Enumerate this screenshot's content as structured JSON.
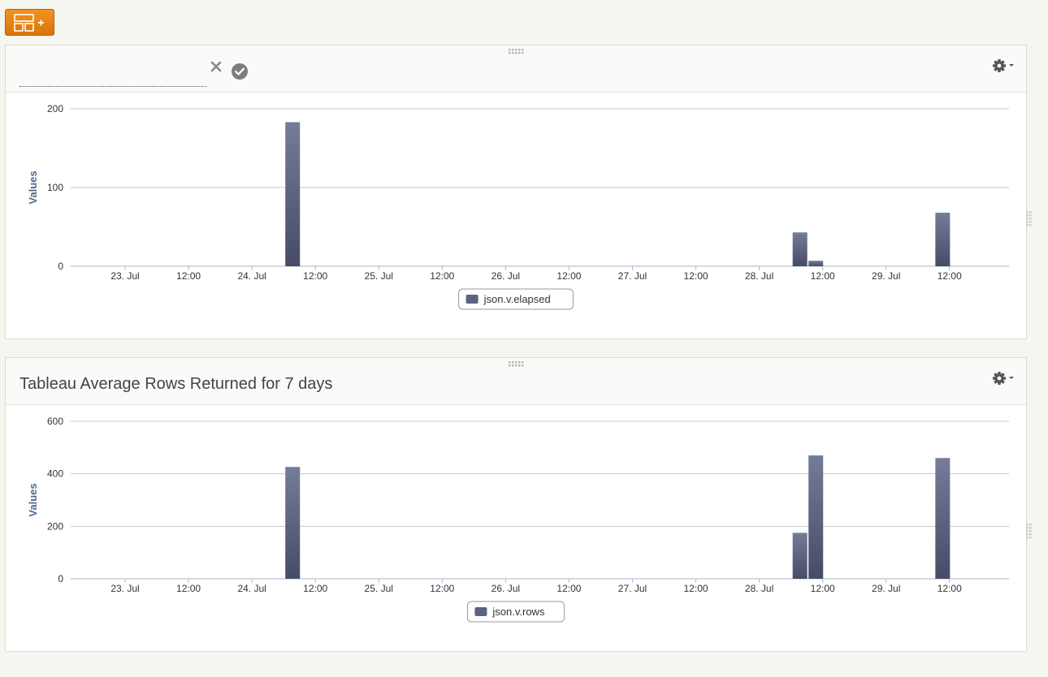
{
  "toolbar": {
    "add_panel_icon": "add-panel-icon"
  },
  "panels": [
    {
      "title_input": {
        "value": "",
        "placeholder": ""
      },
      "icons": {
        "cancel": "close-icon",
        "confirm": "check-circle-icon",
        "settings": "gear-icon",
        "drag": "drag-handle-icon"
      }
    },
    {
      "title": "Tableau Average Rows Returned for 7 days",
      "icons": {
        "settings": "gear-icon",
        "drag": "drag-handle-icon"
      }
    }
  ],
  "chart_data": [
    {
      "type": "bar",
      "ylabel": "Values",
      "ylim": [
        0,
        200
      ],
      "yticks": [
        0,
        100,
        200
      ],
      "xticks": [
        "23. Jul",
        "12:00",
        "24. Jul",
        "12:00",
        "25. Jul",
        "12:00",
        "26. Jul",
        "12:00",
        "27. Jul",
        "12:00",
        "28. Jul",
        "12:00",
        "29. Jul",
        "12:00"
      ],
      "xrange": [
        "2014-07-22 18:00",
        "2014-07-29 22:00"
      ],
      "legend": "bottom-center",
      "grid": true,
      "series": [
        {
          "name": "json.v.elapsed",
          "color": "#5c6380",
          "points": [
            {
              "x": "2014-07-24 12:00",
              "y": 183
            },
            {
              "x": "2014-07-28 12:00",
              "y": 43
            },
            {
              "x": "2014-07-28 15:00",
              "y": 7
            },
            {
              "x": "2014-07-29 15:00",
              "y": 68
            }
          ]
        }
      ]
    },
    {
      "type": "bar",
      "ylabel": "Values",
      "ylim": [
        0,
        600
      ],
      "yticks": [
        0,
        200,
        400,
        600
      ],
      "xticks": [
        "23. Jul",
        "12:00",
        "24. Jul",
        "12:00",
        "25. Jul",
        "12:00",
        "26. Jul",
        "12:00",
        "27. Jul",
        "12:00",
        "28. Jul",
        "12:00",
        "29. Jul",
        "12:00"
      ],
      "xrange": [
        "2014-07-22 18:00",
        "2014-07-29 22:00"
      ],
      "legend": "bottom-center",
      "grid": true,
      "series": [
        {
          "name": "json.v.rows",
          "color": "#5c6380",
          "points": [
            {
              "x": "2014-07-24 12:00",
              "y": 426
            },
            {
              "x": "2014-07-28 12:00",
              "y": 175
            },
            {
              "x": "2014-07-28 15:00",
              "y": 470
            },
            {
              "x": "2014-07-29 15:00",
              "y": 460
            }
          ]
        }
      ]
    }
  ]
}
